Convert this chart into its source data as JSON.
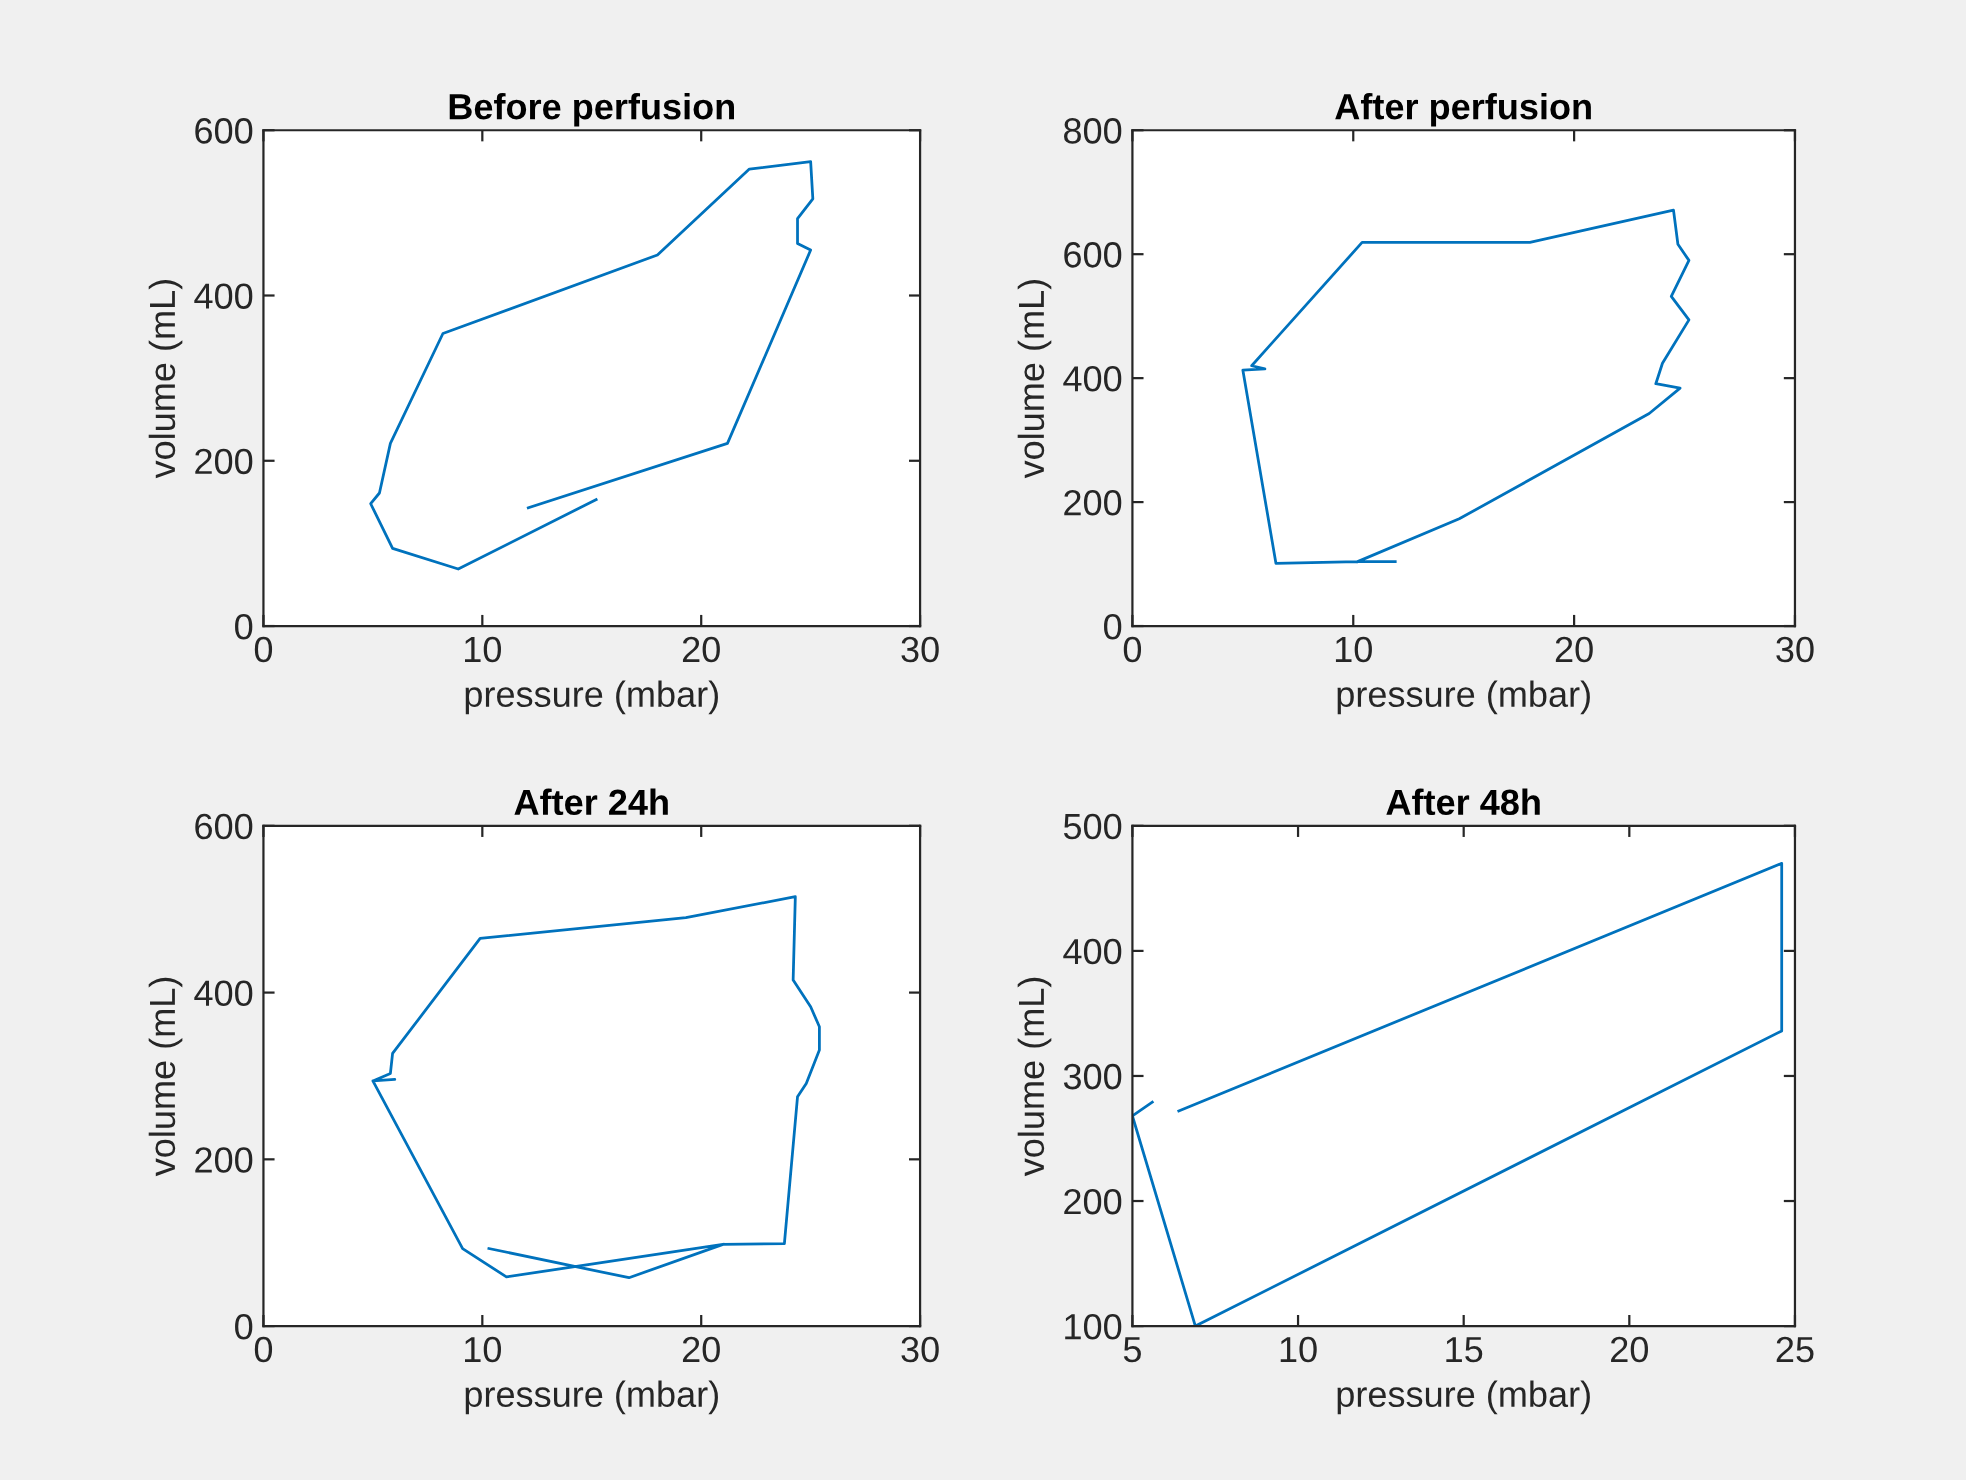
{
  "chart_data": [
    {
      "type": "line",
      "title": "Before perfusion",
      "xlabel": "pressure (mbar)",
      "ylabel": "volume (mL)",
      "xlim": [
        0,
        30
      ],
      "ylim": [
        0,
        600
      ],
      "xticks": [
        0,
        10,
        20,
        30
      ],
      "yticks": [
        0,
        200,
        400,
        600
      ],
      "grid": false,
      "series": [
        {
          "color": "#0072bd",
          "x": [
            12.1,
            21.2,
            25.0,
            24.4,
            24.4,
            25.1,
            25.0,
            22.2,
            18.0,
            8.2,
            5.8,
            5.3,
            4.9,
            5.9,
            8.9,
            15.2
          ],
          "values": [
            143,
            221,
            455,
            463,
            493,
            517,
            562,
            553,
            449,
            354,
            221,
            161,
            148,
            94,
            69,
            153
          ]
        }
      ]
    },
    {
      "type": "line",
      "title": "After perfusion",
      "xlabel": "pressure (mbar)",
      "ylabel": "volume (mL)",
      "xlim": [
        0,
        30
      ],
      "ylim": [
        0,
        800
      ],
      "xticks": [
        0,
        10,
        20,
        30
      ],
      "yticks": [
        0,
        200,
        400,
        600,
        800
      ],
      "grid": false,
      "series": [
        {
          "color": "#0072bd",
          "x": [
            11.9,
            10.2,
            6.5,
            5.0,
            6.0,
            5.4,
            10.4,
            18.0,
            24.5,
            24.7,
            25.2,
            24.4,
            25.2,
            24.0,
            23.7,
            24.8,
            23.4,
            14.8,
            10.2
          ],
          "values": [
            104,
            104,
            101,
            413,
            415,
            420,
            619,
            619,
            671,
            616,
            590,
            532,
            494,
            424,
            391,
            384,
            343,
            173,
            104
          ]
        }
      ]
    },
    {
      "type": "line",
      "title": "After 24h",
      "xlabel": "pressure (mbar)",
      "ylabel": "volume (mL)",
      "xlim": [
        0,
        30
      ],
      "ylim": [
        0,
        600
      ],
      "xticks": [
        0,
        10,
        20,
        30
      ],
      "yticks": [
        0,
        200,
        400,
        600
      ],
      "grid": false,
      "series": [
        {
          "color": "#0072bd",
          "x": [
            10.3,
            16.7,
            21.0,
            23.8,
            24.4,
            24.8,
            25.4,
            25.4,
            25.0,
            24.2,
            24.3,
            19.3,
            9.9,
            5.9,
            5.8,
            5.0,
            6.0,
            5.0,
            9.1,
            11.1,
            21.0
          ],
          "values": [
            93,
            58,
            98,
            99,
            275,
            291,
            331,
            359,
            383,
            415,
            515,
            490,
            465,
            327,
            303,
            294,
            296,
            294,
            93,
            59,
            98
          ]
        }
      ]
    },
    {
      "type": "line",
      "title": "After 48h",
      "xlabel": "pressure (mbar)",
      "ylabel": "volume (mL)",
      "xlim": [
        5,
        25
      ],
      "ylim": [
        100,
        500
      ],
      "xticks": [
        5,
        10,
        15,
        20,
        25
      ],
      "yticks": [
        100,
        200,
        300,
        400,
        500
      ],
      "grid": false,
      "series": [
        {
          "color": "#0072bd",
          "x": [
            5.6,
            5.0,
            6.9,
            24.6,
            24.6,
            6.4
          ],
          "values": [
            279,
            268,
            100,
            336,
            470,
            272
          ]
        }
      ]
    }
  ]
}
